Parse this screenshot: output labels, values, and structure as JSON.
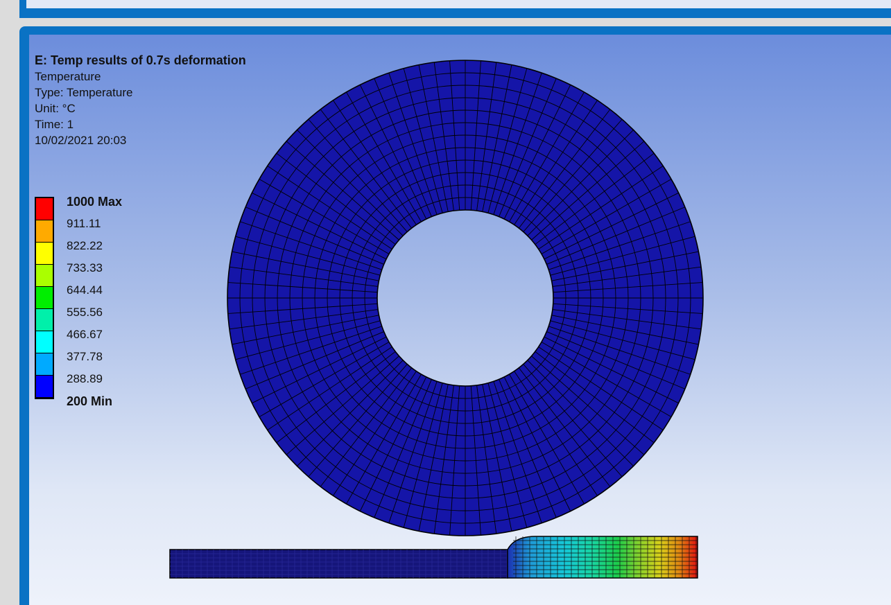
{
  "result_panel": {
    "title": "E: Temp results of 0.7s  deformation",
    "lines": [
      "Temperature",
      "Type: Temperature",
      "Unit: °C",
      "Time: 1",
      "10/02/2021 20:03"
    ]
  },
  "legend": {
    "labels": [
      "1000 Max",
      "911.11",
      "822.22",
      "733.33",
      "644.44",
      "555.56",
      "466.67",
      "377.78",
      "288.89",
      "200 Min"
    ],
    "colors": [
      "#ff0000",
      "#ffaa00",
      "#ffff00",
      "#aaff00",
      "#00ee00",
      "#00f0aa",
      "#00ffff",
      "#00aaff",
      "#0000ff"
    ]
  },
  "model": {
    "ring_color": "#1515a8",
    "mesh_color": "#000000",
    "plate_cold_color": "#15157a"
  }
}
